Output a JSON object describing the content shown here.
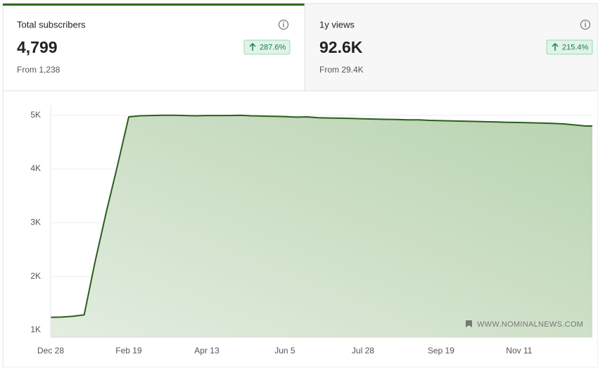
{
  "cards": [
    {
      "title": "Total subscribers",
      "value": "4,799",
      "change": "287.6%",
      "from": "From 1,238"
    },
    {
      "title": "1y views",
      "value": "92.6K",
      "change": "215.4%",
      "from": "From 29.4K"
    }
  ],
  "chart_data": {
    "type": "area",
    "categories": [
      "Dec 28",
      null,
      null,
      null,
      null,
      null,
      null,
      "Feb 19",
      null,
      null,
      null,
      null,
      null,
      null,
      "Apr 13",
      null,
      null,
      null,
      null,
      null,
      null,
      "Jun 5",
      null,
      null,
      null,
      null,
      null,
      null,
      "Jul 28",
      null,
      null,
      null,
      null,
      null,
      null,
      "Sep 19",
      null,
      null,
      null,
      null,
      null,
      null,
      "Nov 11",
      null,
      null,
      null,
      null,
      null,
      null
    ],
    "series": [
      {
        "color": "#2a5e1e",
        "values": [
          1240,
          1245,
          1260,
          1285,
          2290,
          3210,
          4070,
          4970,
          4990,
          4995,
          5000,
          5000,
          4995,
          4990,
          4995,
          4995,
          4995,
          5000,
          4990,
          4985,
          4980,
          4975,
          4965,
          4970,
          4955,
          4950,
          4945,
          4940,
          4935,
          4930,
          4925,
          4920,
          4915,
          4915,
          4905,
          4900,
          4895,
          4890,
          4885,
          4880,
          4875,
          4870,
          4865,
          4860,
          4855,
          4850,
          4840,
          4820,
          4800
        ]
      }
    ],
    "ylim": [
      870,
      5180
    ],
    "yticks": [
      {
        "value": 1000,
        "label": "1K"
      },
      {
        "value": 2000,
        "label": "2K"
      },
      {
        "value": 3000,
        "label": "3K"
      },
      {
        "value": 4000,
        "label": "4K"
      },
      {
        "value": 5000,
        "label": "5K"
      }
    ],
    "grid": true,
    "watermark": "WWW.NOMINALNEWS.COM"
  }
}
